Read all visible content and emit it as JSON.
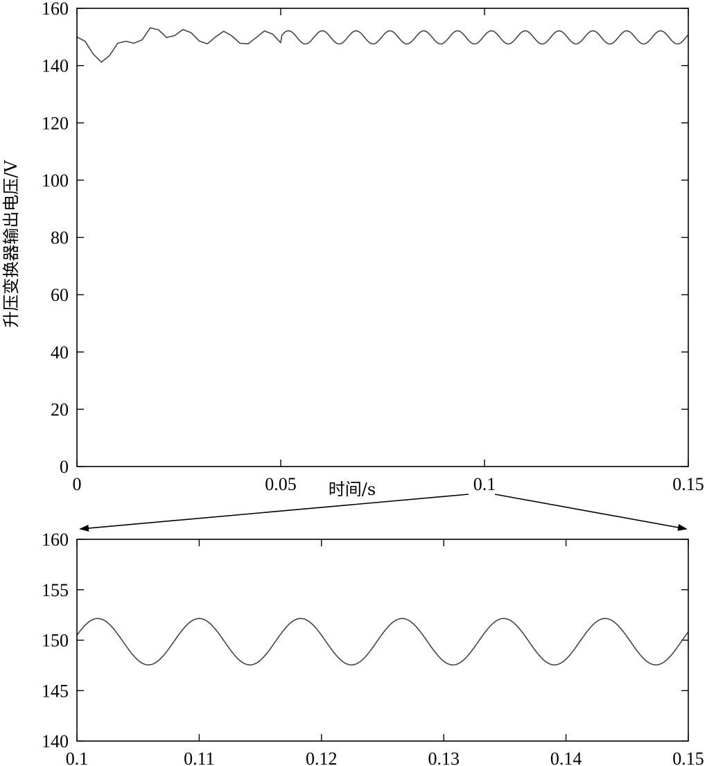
{
  "chart_data": [
    {
      "type": "line",
      "ylabel": "升压变换器输出电压/V",
      "xlabel": "时间/s",
      "xlim": [
        0,
        0.15
      ],
      "ylim": [
        0,
        160
      ],
      "x_ticks": [
        "0",
        "0.05",
        "0.1",
        "0.15"
      ],
      "y_ticks": [
        "0",
        "20",
        "40",
        "60",
        "80",
        "100",
        "120",
        "140",
        "160"
      ],
      "series": [
        {
          "x": [
            0,
            0.002,
            0.004,
            0.006,
            0.008,
            0.01,
            0.012,
            0.014,
            0.016,
            0.018,
            0.02,
            0.022,
            0.024,
            0.026,
            0.028,
            0.03,
            0.032,
            0.034,
            0.036,
            0.038,
            0.04,
            0.042,
            0.044,
            0.046,
            0.048,
            0.05
          ],
          "y": [
            150,
            148.5,
            144,
            141.2,
            143.5,
            147.8,
            148.5,
            147.8,
            149,
            153.2,
            152.5,
            149.8,
            150.5,
            152.6,
            151.5,
            148.6,
            147.6,
            150,
            152,
            150.4,
            147.8,
            147.6,
            149.8,
            152.1,
            151,
            148
          ]
        }
      ],
      "steady_state": {
        "x_from": 0.05,
        "mean": 149.85,
        "amplitude": 2.3,
        "period": 0.0083
      }
    },
    {
      "type": "line",
      "xlim": [
        0.1,
        0.15
      ],
      "ylim": [
        140,
        160
      ],
      "x_ticks": [
        "0.1",
        "0.11",
        "0.12",
        "0.13",
        "0.14",
        "0.15"
      ],
      "y_ticks": [
        "140",
        "145",
        "150",
        "155",
        "160"
      ],
      "series": [
        {
          "mean": 149.85,
          "amplitude": 2.3,
          "period": 0.0083,
          "peaks_x": [
            0.1017,
            0.11,
            0.1183,
            0.1267,
            0.135,
            0.1433
          ],
          "troughs_x": [
            0.1058,
            0.1142,
            0.1225,
            0.1308,
            0.1392,
            0.1475
          ],
          "y_at_start": 150.2,
          "y_at_end": 150.0
        }
      ]
    }
  ]
}
